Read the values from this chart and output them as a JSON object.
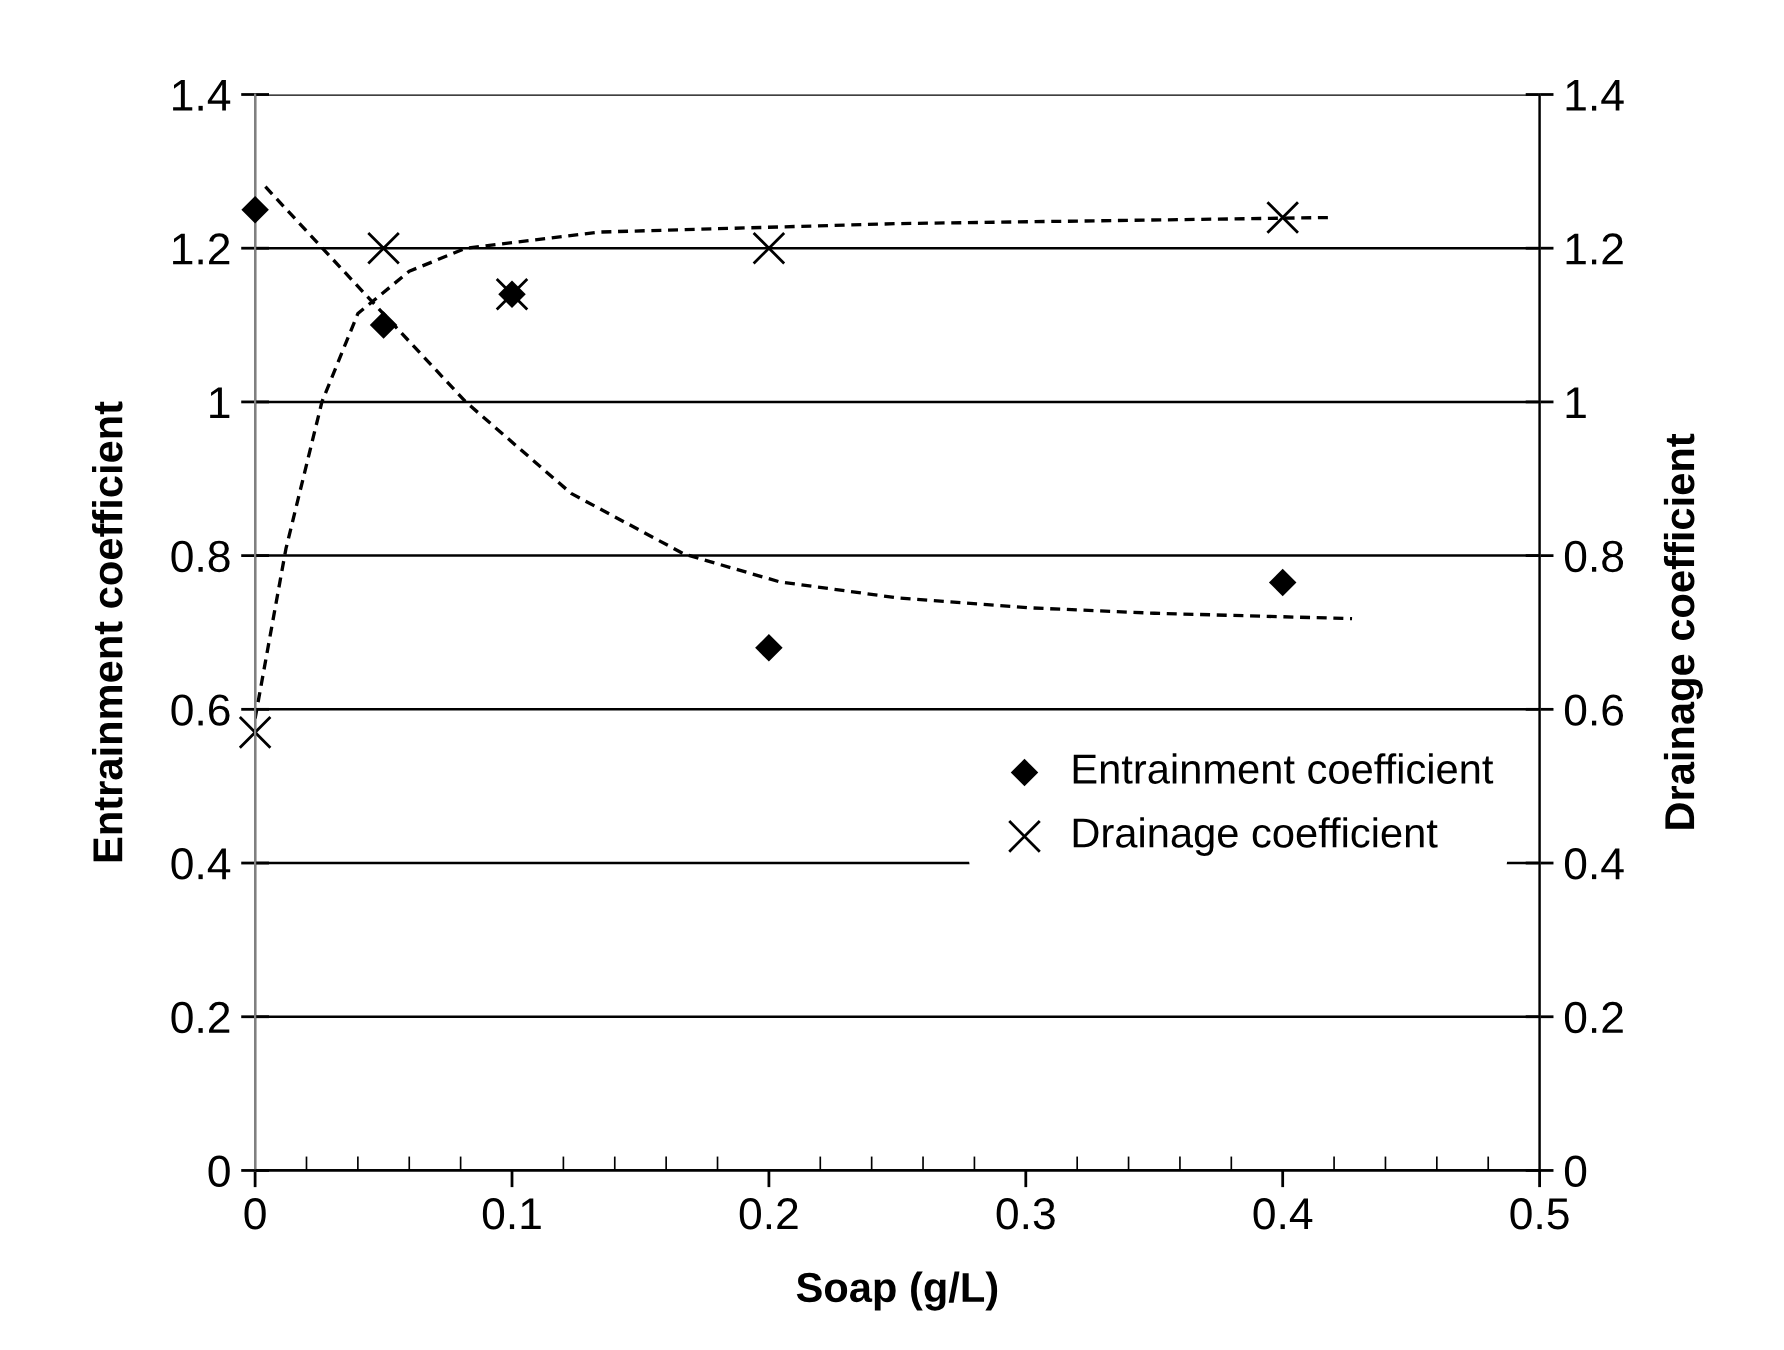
{
  "chart_data": {
    "type": "scatter",
    "xlabel": "Soap (g/L)",
    "ylabel": "Entrainment coefficient",
    "y2label": "Drainage coefficient",
    "xlim": [
      0,
      0.5
    ],
    "xticks": [
      0,
      0.1,
      0.2,
      0.3,
      0.4,
      0.5
    ],
    "ylim": [
      0,
      1.4
    ],
    "yticks": [
      0,
      0.2,
      0.4,
      0.6,
      0.8,
      1,
      1.2,
      1.4
    ],
    "y2lim": [
      0,
      1.4
    ],
    "y2ticks": [
      0,
      0.2,
      0.4,
      0.6,
      0.8,
      1,
      1.2,
      1.4
    ],
    "grid": "y",
    "legend": "right",
    "series": [
      {
        "name": "Entrainment coefficient",
        "marker": "diamond",
        "color": "#000000",
        "x": [
          0,
          0.05,
          0.1,
          0.2,
          0.4
        ],
        "values": [
          1.25,
          1.1,
          1.14,
          0.68,
          0.765
        ]
      },
      {
        "name": "Drainage coefficient",
        "marker": "cross",
        "color": "#000000",
        "axis": "y2",
        "x": [
          0,
          0.05,
          0.1,
          0.2,
          0.4
        ],
        "values": [
          0.57,
          1.2,
          1.14,
          1.2,
          1.24
        ]
      },
      {
        "type": "line",
        "line_style": "dashed",
        "color": "#000000",
        "x": [
          0.004,
          0.044,
          0.082,
          0.123,
          0.167,
          0.204,
          0.25,
          0.302,
          0.35,
          0.427
        ],
        "values": [
          1.28,
          1.136,
          1.0,
          0.881,
          0.802,
          0.766,
          0.745,
          0.732,
          0.725,
          0.718
        ]
      },
      {
        "type": "line",
        "line_style": "dashed",
        "color": "#000000",
        "axis": "y2",
        "x": [
          0,
          0.012,
          0.026,
          0.04,
          0.06,
          0.082,
          0.134,
          0.25,
          0.42
        ],
        "values": [
          0.588,
          0.809,
          1.0,
          1.115,
          1.17,
          1.2,
          1.221,
          1.232,
          1.24
        ]
      }
    ]
  }
}
